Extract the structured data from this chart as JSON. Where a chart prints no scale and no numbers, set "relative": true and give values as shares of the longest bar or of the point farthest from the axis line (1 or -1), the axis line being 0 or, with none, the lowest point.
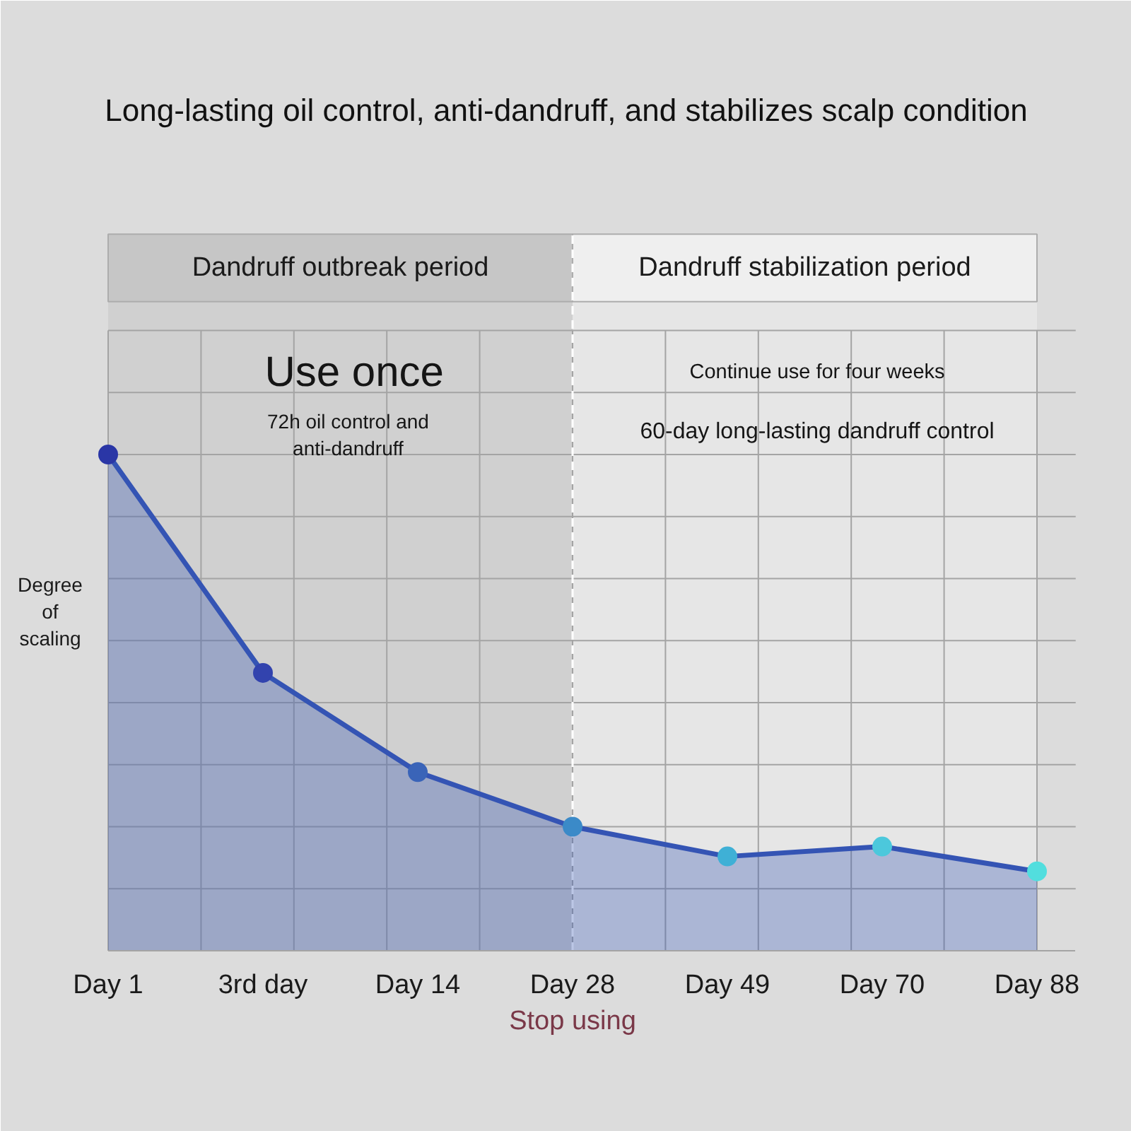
{
  "chart_data": {
    "type": "area",
    "title": "Long-lasting oil control, anti-dandruff, and stabilizes scalp condition",
    "ylabel": "Degree of scaling",
    "categories": [
      "Day 1",
      "3rd day",
      "Day 14",
      "Day 28",
      "Day 49",
      "Day 70",
      "Day 88"
    ],
    "relative": true,
    "marker": "circle",
    "grid": true,
    "series": [
      {
        "color": "#3454b4",
        "colors": [
          "#2a36a6",
          "#3243ae",
          "#3a64b8",
          "#3b8ac8",
          "#3fb0d6",
          "#4cc8dc",
          "#52dede"
        ],
        "values": [
          1,
          0.56,
          0.36,
          0.25,
          0.19,
          0.21,
          0.16
        ]
      }
    ],
    "bands": [
      {
        "axis": "x",
        "from": "Day 1",
        "to": "Day 28",
        "label": "Dandruff outbreak period",
        "color": "#c6c6c6"
      },
      {
        "axis": "x",
        "from": "Day 28",
        "to": "Day 88",
        "label": "Dandruff stabilization period",
        "color": "#efefef"
      }
    ],
    "ref_lines": [
      {
        "axis": "x",
        "value": "Day 28",
        "label": "Stop using",
        "color": "#ffffff",
        "line_style": "dashed"
      }
    ],
    "annotations": [
      "Use once",
      "72h oil control and\nanti-dandruff",
      "Continue use for four weeks",
      "60-day long-lasting dandruff control"
    ]
  }
}
